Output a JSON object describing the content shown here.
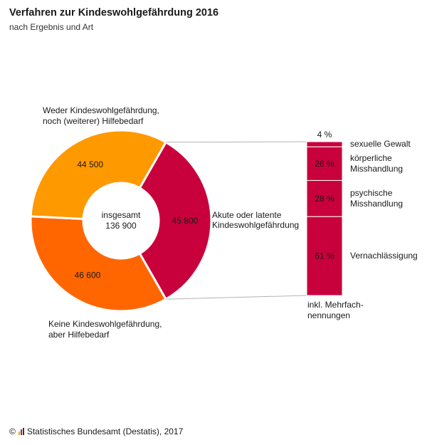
{
  "title": "Verfahren zur Kindeswohlgefährdung 2016",
  "subtitle": "nach Ergebnis und Art",
  "footer": {
    "copyright": "©",
    "source": "Statistisches Bundesamt (Destatis), 2017",
    "logo_colors": [
      "#e8b000",
      "#c8102e",
      "#333333"
    ]
  },
  "chart_data": [
    {
      "type": "pie",
      "center_label": [
        "insgesamt",
        "136 900"
      ],
      "slices": [
        {
          "name": "Akute oder latente Kindeswohlgefährdung",
          "label_lines": [
            "Akute oder latente",
            "Kindeswohlgefährdung"
          ],
          "value": 45800,
          "value_label": "45 800",
          "color": "#c8003c"
        },
        {
          "name": "Keine Kindeswohlgefährdung, aber Hilfebedarf",
          "label_lines": [
            "Keine Kindeswohlgefährdung,",
            "aber Hilfebedarf"
          ],
          "value": 46600,
          "value_label": "46 600",
          "color": "#ff6600"
        },
        {
          "name": "Weder Kindeswohlgefährdung, noch (weiterer) Hilfebedarf",
          "label_lines": [
            "Weder Kindeswohlgefährdung,",
            "noch (weiterer) Hilfebedarf"
          ],
          "value": 44500,
          "value_label": "44 500",
          "color": "#ff9900"
        }
      ]
    },
    {
      "type": "bar",
      "stacked": true,
      "unit": "%",
      "color": "#c8003c",
      "categories": [
        "sexuelle Gewalt",
        "körperliche Misshandlung",
        "psychische Misshandlung",
        "Vernachlässigung"
      ],
      "category_lines": [
        [
          "sexuelle Gewalt"
        ],
        [
          "körperliche",
          "Misshandlung"
        ],
        [
          "psychische",
          "Misshandlung"
        ],
        [
          "Vernachlässigung"
        ]
      ],
      "values": [
        4,
        26,
        28,
        61
      ],
      "value_labels": [
        "4 %",
        "26 %",
        "28 %",
        "61 %"
      ],
      "note_lines": [
        "inkl. Mehrfach-",
        "nennungen"
      ]
    }
  ]
}
